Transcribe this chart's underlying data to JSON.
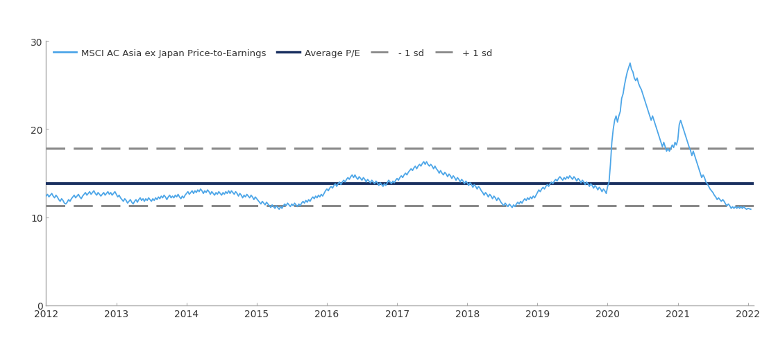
{
  "average_pe": 13.8,
  "plus_1sd": 17.8,
  "minus_1sd": 11.3,
  "line_color": "#4da6e8",
  "average_color": "#1a3060",
  "sd_color": "#888888",
  "xlim_start": 2012.0,
  "xlim_end": 2022.08,
  "ylim": [
    0,
    30
  ],
  "yticks": [
    0,
    10,
    20,
    30
  ],
  "legend_labels": [
    "MSCI AC Asia ex Japan Price-to-Earnings",
    "Average P/E",
    "- 1 sd",
    "+ 1 sd"
  ],
  "pe_data": [
    [
      2012.0,
      12.4
    ],
    [
      2012.02,
      12.6
    ],
    [
      2012.04,
      12.3
    ],
    [
      2012.06,
      12.5
    ],
    [
      2012.08,
      12.7
    ],
    [
      2012.1,
      12.4
    ],
    [
      2012.12,
      12.2
    ],
    [
      2012.14,
      12.5
    ],
    [
      2012.16,
      12.3
    ],
    [
      2012.18,
      12.0
    ],
    [
      2012.2,
      11.8
    ],
    [
      2012.22,
      12.1
    ],
    [
      2012.24,
      11.9
    ],
    [
      2012.26,
      11.6
    ],
    [
      2012.28,
      11.5
    ],
    [
      2012.3,
      11.7
    ],
    [
      2012.32,
      12.0
    ],
    [
      2012.34,
      11.8
    ],
    [
      2012.36,
      12.1
    ],
    [
      2012.38,
      12.3
    ],
    [
      2012.4,
      12.5
    ],
    [
      2012.42,
      12.2
    ],
    [
      2012.44,
      12.4
    ],
    [
      2012.46,
      12.6
    ],
    [
      2012.48,
      12.3
    ],
    [
      2012.5,
      12.1
    ],
    [
      2012.52,
      12.4
    ],
    [
      2012.54,
      12.6
    ],
    [
      2012.56,
      12.8
    ],
    [
      2012.58,
      12.5
    ],
    [
      2012.6,
      12.7
    ],
    [
      2012.62,
      12.9
    ],
    [
      2012.64,
      12.6
    ],
    [
      2012.66,
      12.8
    ],
    [
      2012.68,
      13.0
    ],
    [
      2012.7,
      12.7
    ],
    [
      2012.72,
      12.5
    ],
    [
      2012.74,
      12.8
    ],
    [
      2012.76,
      12.6
    ],
    [
      2012.78,
      12.4
    ],
    [
      2012.8,
      12.6
    ],
    [
      2012.82,
      12.8
    ],
    [
      2012.84,
      12.5
    ],
    [
      2012.86,
      12.7
    ],
    [
      2012.88,
      12.9
    ],
    [
      2012.9,
      12.6
    ],
    [
      2012.92,
      12.8
    ],
    [
      2012.94,
      12.5
    ],
    [
      2012.96,
      12.7
    ],
    [
      2012.98,
      12.9
    ],
    [
      2013.0,
      12.6
    ],
    [
      2013.02,
      12.3
    ],
    [
      2013.04,
      12.5
    ],
    [
      2013.06,
      12.2
    ],
    [
      2013.08,
      12.0
    ],
    [
      2013.1,
      11.8
    ],
    [
      2013.12,
      12.1
    ],
    [
      2013.14,
      11.9
    ],
    [
      2013.16,
      11.6
    ],
    [
      2013.18,
      11.8
    ],
    [
      2013.2,
      12.0
    ],
    [
      2013.22,
      11.7
    ],
    [
      2013.24,
      11.5
    ],
    [
      2013.26,
      11.8
    ],
    [
      2013.28,
      12.0
    ],
    [
      2013.3,
      11.7
    ],
    [
      2013.32,
      12.0
    ],
    [
      2013.34,
      12.2
    ],
    [
      2013.36,
      11.9
    ],
    [
      2013.38,
      12.1
    ],
    [
      2013.4,
      11.8
    ],
    [
      2013.42,
      12.1
    ],
    [
      2013.44,
      11.9
    ],
    [
      2013.46,
      12.2
    ],
    [
      2013.48,
      12.0
    ],
    [
      2013.5,
      11.8
    ],
    [
      2013.52,
      12.1
    ],
    [
      2013.54,
      11.9
    ],
    [
      2013.56,
      12.2
    ],
    [
      2013.58,
      12.0
    ],
    [
      2013.6,
      12.3
    ],
    [
      2013.62,
      12.1
    ],
    [
      2013.64,
      12.4
    ],
    [
      2013.66,
      12.2
    ],
    [
      2013.68,
      12.5
    ],
    [
      2013.7,
      12.3
    ],
    [
      2013.72,
      12.0
    ],
    [
      2013.74,
      12.3
    ],
    [
      2013.76,
      12.5
    ],
    [
      2013.78,
      12.2
    ],
    [
      2013.8,
      12.4
    ],
    [
      2013.82,
      12.2
    ],
    [
      2013.84,
      12.5
    ],
    [
      2013.86,
      12.3
    ],
    [
      2013.88,
      12.6
    ],
    [
      2013.9,
      12.3
    ],
    [
      2013.92,
      12.1
    ],
    [
      2013.94,
      12.4
    ],
    [
      2013.96,
      12.2
    ],
    [
      2013.98,
      12.5
    ],
    [
      2014.0,
      12.7
    ],
    [
      2014.02,
      12.9
    ],
    [
      2014.04,
      12.6
    ],
    [
      2014.06,
      12.8
    ],
    [
      2014.08,
      13.0
    ],
    [
      2014.1,
      12.7
    ],
    [
      2014.12,
      13.0
    ],
    [
      2014.14,
      12.8
    ],
    [
      2014.16,
      13.1
    ],
    [
      2014.18,
      12.9
    ],
    [
      2014.2,
      13.2
    ],
    [
      2014.22,
      13.0
    ],
    [
      2014.24,
      12.7
    ],
    [
      2014.26,
      13.0
    ],
    [
      2014.28,
      12.8
    ],
    [
      2014.3,
      13.1
    ],
    [
      2014.32,
      12.9
    ],
    [
      2014.34,
      12.6
    ],
    [
      2014.36,
      12.9
    ],
    [
      2014.38,
      12.7
    ],
    [
      2014.4,
      12.5
    ],
    [
      2014.42,
      12.8
    ],
    [
      2014.44,
      12.6
    ],
    [
      2014.46,
      12.9
    ],
    [
      2014.48,
      12.7
    ],
    [
      2014.5,
      12.5
    ],
    [
      2014.52,
      12.8
    ],
    [
      2014.54,
      12.6
    ],
    [
      2014.56,
      12.9
    ],
    [
      2014.58,
      12.7
    ],
    [
      2014.6,
      13.0
    ],
    [
      2014.62,
      12.7
    ],
    [
      2014.64,
      13.0
    ],
    [
      2014.66,
      12.8
    ],
    [
      2014.68,
      12.6
    ],
    [
      2014.7,
      12.9
    ],
    [
      2014.72,
      12.7
    ],
    [
      2014.74,
      12.4
    ],
    [
      2014.76,
      12.7
    ],
    [
      2014.78,
      12.5
    ],
    [
      2014.8,
      12.2
    ],
    [
      2014.82,
      12.5
    ],
    [
      2014.84,
      12.3
    ],
    [
      2014.86,
      12.6
    ],
    [
      2014.88,
      12.4
    ],
    [
      2014.9,
      12.2
    ],
    [
      2014.92,
      12.5
    ],
    [
      2014.94,
      12.3
    ],
    [
      2014.96,
      12.0
    ],
    [
      2014.98,
      12.3
    ],
    [
      2015.0,
      12.1
    ],
    [
      2015.02,
      11.9
    ],
    [
      2015.04,
      11.7
    ],
    [
      2015.06,
      11.5
    ],
    [
      2015.08,
      11.8
    ],
    [
      2015.1,
      11.6
    ],
    [
      2015.12,
      11.4
    ],
    [
      2015.14,
      11.7
    ],
    [
      2015.16,
      11.5
    ],
    [
      2015.18,
      11.3
    ],
    [
      2015.2,
      11.1
    ],
    [
      2015.22,
      11.4
    ],
    [
      2015.24,
      11.2
    ],
    [
      2015.26,
      11.0
    ],
    [
      2015.28,
      11.3
    ],
    [
      2015.3,
      11.1
    ],
    [
      2015.32,
      10.9
    ],
    [
      2015.34,
      11.2
    ],
    [
      2015.36,
      11.0
    ],
    [
      2015.38,
      11.3
    ],
    [
      2015.4,
      11.5
    ],
    [
      2015.42,
      11.3
    ],
    [
      2015.44,
      11.6
    ],
    [
      2015.46,
      11.4
    ],
    [
      2015.48,
      11.2
    ],
    [
      2015.5,
      11.5
    ],
    [
      2015.52,
      11.3
    ],
    [
      2015.54,
      11.6
    ],
    [
      2015.56,
      11.4
    ],
    [
      2015.58,
      11.2
    ],
    [
      2015.6,
      11.5
    ],
    [
      2015.62,
      11.3
    ],
    [
      2015.64,
      11.6
    ],
    [
      2015.66,
      11.8
    ],
    [
      2015.68,
      11.6
    ],
    [
      2015.7,
      11.9
    ],
    [
      2015.72,
      11.7
    ],
    [
      2015.74,
      12.0
    ],
    [
      2015.76,
      11.8
    ],
    [
      2015.78,
      12.1
    ],
    [
      2015.8,
      12.3
    ],
    [
      2015.82,
      12.1
    ],
    [
      2015.84,
      12.4
    ],
    [
      2015.86,
      12.2
    ],
    [
      2015.88,
      12.5
    ],
    [
      2015.9,
      12.3
    ],
    [
      2015.92,
      12.6
    ],
    [
      2015.94,
      12.4
    ],
    [
      2015.96,
      12.7
    ],
    [
      2015.98,
      13.0
    ],
    [
      2016.0,
      13.2
    ],
    [
      2016.02,
      13.0
    ],
    [
      2016.04,
      13.3
    ],
    [
      2016.06,
      13.5
    ],
    [
      2016.08,
      13.3
    ],
    [
      2016.1,
      13.6
    ],
    [
      2016.12,
      13.8
    ],
    [
      2016.14,
      13.5
    ],
    [
      2016.16,
      13.8
    ],
    [
      2016.18,
      14.0
    ],
    [
      2016.2,
      13.7
    ],
    [
      2016.22,
      14.0
    ],
    [
      2016.24,
      14.2
    ],
    [
      2016.26,
      14.0
    ],
    [
      2016.28,
      14.3
    ],
    [
      2016.3,
      14.5
    ],
    [
      2016.32,
      14.3
    ],
    [
      2016.34,
      14.6
    ],
    [
      2016.36,
      14.8
    ],
    [
      2016.38,
      14.5
    ],
    [
      2016.4,
      14.8
    ],
    [
      2016.42,
      14.5
    ],
    [
      2016.44,
      14.3
    ],
    [
      2016.46,
      14.6
    ],
    [
      2016.48,
      14.4
    ],
    [
      2016.5,
      14.2
    ],
    [
      2016.52,
      14.5
    ],
    [
      2016.54,
      14.3
    ],
    [
      2016.56,
      14.0
    ],
    [
      2016.58,
      14.3
    ],
    [
      2016.6,
      14.1
    ],
    [
      2016.62,
      13.9
    ],
    [
      2016.64,
      14.2
    ],
    [
      2016.66,
      14.0
    ],
    [
      2016.68,
      13.8
    ],
    [
      2016.7,
      14.1
    ],
    [
      2016.72,
      13.9
    ],
    [
      2016.74,
      13.6
    ],
    [
      2016.76,
      13.9
    ],
    [
      2016.78,
      13.7
    ],
    [
      2016.8,
      13.5
    ],
    [
      2016.82,
      13.8
    ],
    [
      2016.84,
      13.6
    ],
    [
      2016.86,
      13.9
    ],
    [
      2016.88,
      14.2
    ],
    [
      2016.9,
      14.0
    ],
    [
      2016.92,
      13.8
    ],
    [
      2016.94,
      14.1
    ],
    [
      2016.96,
      13.9
    ],
    [
      2016.98,
      14.2
    ],
    [
      2017.0,
      14.4
    ],
    [
      2017.02,
      14.2
    ],
    [
      2017.04,
      14.5
    ],
    [
      2017.06,
      14.7
    ],
    [
      2017.08,
      14.5
    ],
    [
      2017.1,
      14.8
    ],
    [
      2017.12,
      15.0
    ],
    [
      2017.14,
      14.8
    ],
    [
      2017.16,
      15.1
    ],
    [
      2017.18,
      15.3
    ],
    [
      2017.2,
      15.5
    ],
    [
      2017.22,
      15.3
    ],
    [
      2017.24,
      15.6
    ],
    [
      2017.26,
      15.8
    ],
    [
      2017.28,
      15.5
    ],
    [
      2017.3,
      15.8
    ],
    [
      2017.32,
      16.0
    ],
    [
      2017.34,
      15.8
    ],
    [
      2017.36,
      16.1
    ],
    [
      2017.38,
      16.3
    ],
    [
      2017.4,
      16.0
    ],
    [
      2017.42,
      16.3
    ],
    [
      2017.44,
      16.0
    ],
    [
      2017.46,
      15.8
    ],
    [
      2017.48,
      16.0
    ],
    [
      2017.5,
      15.8
    ],
    [
      2017.52,
      15.5
    ],
    [
      2017.54,
      15.8
    ],
    [
      2017.56,
      15.5
    ],
    [
      2017.58,
      15.3
    ],
    [
      2017.6,
      15.0
    ],
    [
      2017.62,
      15.3
    ],
    [
      2017.64,
      15.0
    ],
    [
      2017.66,
      14.8
    ],
    [
      2017.68,
      15.1
    ],
    [
      2017.7,
      14.9
    ],
    [
      2017.72,
      14.6
    ],
    [
      2017.74,
      14.9
    ],
    [
      2017.76,
      14.7
    ],
    [
      2017.78,
      14.4
    ],
    [
      2017.8,
      14.7
    ],
    [
      2017.82,
      14.5
    ],
    [
      2017.84,
      14.2
    ],
    [
      2017.86,
      14.5
    ],
    [
      2017.88,
      14.3
    ],
    [
      2017.9,
      14.0
    ],
    [
      2017.92,
      14.3
    ],
    [
      2017.94,
      14.1
    ],
    [
      2017.96,
      13.8
    ],
    [
      2017.98,
      14.1
    ],
    [
      2018.0,
      13.9
    ],
    [
      2018.02,
      13.6
    ],
    [
      2018.04,
      13.9
    ],
    [
      2018.06,
      13.7
    ],
    [
      2018.08,
      13.4
    ],
    [
      2018.1,
      13.7
    ],
    [
      2018.12,
      13.5
    ],
    [
      2018.14,
      13.2
    ],
    [
      2018.16,
      13.5
    ],
    [
      2018.18,
      13.3
    ],
    [
      2018.2,
      13.0
    ],
    [
      2018.22,
      12.8
    ],
    [
      2018.24,
      12.5
    ],
    [
      2018.26,
      12.8
    ],
    [
      2018.28,
      12.6
    ],
    [
      2018.3,
      12.3
    ],
    [
      2018.32,
      12.6
    ],
    [
      2018.34,
      12.4
    ],
    [
      2018.36,
      12.1
    ],
    [
      2018.38,
      12.4
    ],
    [
      2018.4,
      12.2
    ],
    [
      2018.42,
      11.9
    ],
    [
      2018.44,
      12.2
    ],
    [
      2018.46,
      12.0
    ],
    [
      2018.48,
      11.7
    ],
    [
      2018.5,
      11.5
    ],
    [
      2018.52,
      11.3
    ],
    [
      2018.54,
      11.6
    ],
    [
      2018.56,
      11.4
    ],
    [
      2018.58,
      11.2
    ],
    [
      2018.6,
      11.5
    ],
    [
      2018.62,
      11.3
    ],
    [
      2018.64,
      11.1
    ],
    [
      2018.66,
      11.4
    ],
    [
      2018.68,
      11.2
    ],
    [
      2018.7,
      11.5
    ],
    [
      2018.72,
      11.7
    ],
    [
      2018.74,
      11.5
    ],
    [
      2018.76,
      11.8
    ],
    [
      2018.78,
      11.6
    ],
    [
      2018.8,
      11.9
    ],
    [
      2018.82,
      12.1
    ],
    [
      2018.84,
      11.9
    ],
    [
      2018.86,
      12.2
    ],
    [
      2018.88,
      12.0
    ],
    [
      2018.9,
      12.3
    ],
    [
      2018.92,
      12.1
    ],
    [
      2018.94,
      12.4
    ],
    [
      2018.96,
      12.2
    ],
    [
      2018.98,
      12.5
    ],
    [
      2019.0,
      12.8
    ],
    [
      2019.02,
      13.1
    ],
    [
      2019.04,
      12.9
    ],
    [
      2019.06,
      13.2
    ],
    [
      2019.08,
      13.4
    ],
    [
      2019.1,
      13.2
    ],
    [
      2019.12,
      13.5
    ],
    [
      2019.14,
      13.7
    ],
    [
      2019.16,
      13.5
    ],
    [
      2019.18,
      13.8
    ],
    [
      2019.2,
      14.0
    ],
    [
      2019.22,
      13.8
    ],
    [
      2019.24,
      14.1
    ],
    [
      2019.26,
      14.3
    ],
    [
      2019.28,
      14.1
    ],
    [
      2019.3,
      14.4
    ],
    [
      2019.32,
      14.6
    ],
    [
      2019.34,
      14.4
    ],
    [
      2019.36,
      14.2
    ],
    [
      2019.38,
      14.5
    ],
    [
      2019.4,
      14.3
    ],
    [
      2019.42,
      14.6
    ],
    [
      2019.44,
      14.4
    ],
    [
      2019.46,
      14.7
    ],
    [
      2019.48,
      14.5
    ],
    [
      2019.5,
      14.3
    ],
    [
      2019.52,
      14.6
    ],
    [
      2019.54,
      14.4
    ],
    [
      2019.56,
      14.1
    ],
    [
      2019.58,
      14.4
    ],
    [
      2019.6,
      14.2
    ],
    [
      2019.62,
      13.9
    ],
    [
      2019.64,
      14.2
    ],
    [
      2019.66,
      14.0
    ],
    [
      2019.68,
      13.7
    ],
    [
      2019.7,
      14.0
    ],
    [
      2019.72,
      13.8
    ],
    [
      2019.74,
      13.5
    ],
    [
      2019.76,
      13.8
    ],
    [
      2019.78,
      13.6
    ],
    [
      2019.8,
      13.3
    ],
    [
      2019.82,
      13.6
    ],
    [
      2019.84,
      13.4
    ],
    [
      2019.86,
      13.1
    ],
    [
      2019.88,
      13.4
    ],
    [
      2019.9,
      13.2
    ],
    [
      2019.92,
      12.9
    ],
    [
      2019.94,
      13.2
    ],
    [
      2019.96,
      13.0
    ],
    [
      2019.98,
      12.7
    ],
    [
      2020.0,
      13.5
    ],
    [
      2020.02,
      14.0
    ],
    [
      2020.04,
      16.0
    ],
    [
      2020.06,
      18.5
    ],
    [
      2020.08,
      20.0
    ],
    [
      2020.1,
      21.0
    ],
    [
      2020.12,
      21.5
    ],
    [
      2020.14,
      20.8
    ],
    [
      2020.16,
      21.5
    ],
    [
      2020.18,
      22.0
    ],
    [
      2020.2,
      23.5
    ],
    [
      2020.22,
      24.0
    ],
    [
      2020.24,
      25.0
    ],
    [
      2020.26,
      25.8
    ],
    [
      2020.28,
      26.5
    ],
    [
      2020.3,
      27.0
    ],
    [
      2020.32,
      27.5
    ],
    [
      2020.34,
      26.8
    ],
    [
      2020.36,
      26.5
    ],
    [
      2020.38,
      25.8
    ],
    [
      2020.4,
      25.5
    ],
    [
      2020.42,
      25.8
    ],
    [
      2020.44,
      25.2
    ],
    [
      2020.46,
      24.8
    ],
    [
      2020.48,
      24.5
    ],
    [
      2020.5,
      24.0
    ],
    [
      2020.52,
      23.5
    ],
    [
      2020.54,
      23.0
    ],
    [
      2020.56,
      22.5
    ],
    [
      2020.58,
      22.0
    ],
    [
      2020.6,
      21.5
    ],
    [
      2020.62,
      21.0
    ],
    [
      2020.64,
      21.5
    ],
    [
      2020.66,
      21.0
    ],
    [
      2020.68,
      20.5
    ],
    [
      2020.7,
      20.0
    ],
    [
      2020.72,
      19.5
    ],
    [
      2020.74,
      19.0
    ],
    [
      2020.76,
      18.5
    ],
    [
      2020.78,
      18.0
    ],
    [
      2020.8,
      18.5
    ],
    [
      2020.82,
      18.0
    ],
    [
      2020.84,
      17.5
    ],
    [
      2020.86,
      17.8
    ],
    [
      2020.88,
      17.5
    ],
    [
      2020.9,
      17.8
    ],
    [
      2020.92,
      18.2
    ],
    [
      2020.94,
      17.9
    ],
    [
      2020.96,
      18.5
    ],
    [
      2020.98,
      18.2
    ],
    [
      2021.0,
      18.8
    ],
    [
      2021.02,
      20.5
    ],
    [
      2021.04,
      21.0
    ],
    [
      2021.06,
      20.5
    ],
    [
      2021.08,
      20.0
    ],
    [
      2021.1,
      19.5
    ],
    [
      2021.12,
      19.0
    ],
    [
      2021.14,
      18.5
    ],
    [
      2021.16,
      18.0
    ],
    [
      2021.18,
      17.6
    ],
    [
      2021.2,
      17.0
    ],
    [
      2021.22,
      17.5
    ],
    [
      2021.24,
      17.0
    ],
    [
      2021.26,
      16.5
    ],
    [
      2021.28,
      16.0
    ],
    [
      2021.3,
      15.5
    ],
    [
      2021.32,
      15.0
    ],
    [
      2021.34,
      14.5
    ],
    [
      2021.36,
      14.8
    ],
    [
      2021.38,
      14.5
    ],
    [
      2021.4,
      14.0
    ],
    [
      2021.42,
      13.8
    ],
    [
      2021.44,
      13.5
    ],
    [
      2021.46,
      13.2
    ],
    [
      2021.48,
      13.0
    ],
    [
      2021.5,
      12.8
    ],
    [
      2021.52,
      12.5
    ],
    [
      2021.54,
      12.3
    ],
    [
      2021.56,
      12.0
    ],
    [
      2021.58,
      12.2
    ],
    [
      2021.6,
      12.0
    ],
    [
      2021.62,
      11.8
    ],
    [
      2021.64,
      12.0
    ],
    [
      2021.66,
      11.8
    ],
    [
      2021.68,
      11.5
    ],
    [
      2021.7,
      11.3
    ],
    [
      2021.72,
      11.5
    ],
    [
      2021.74,
      11.3
    ],
    [
      2021.76,
      11.0
    ],
    [
      2021.78,
      11.2
    ],
    [
      2021.8,
      11.0
    ],
    [
      2021.82,
      11.2
    ],
    [
      2021.84,
      11.0
    ],
    [
      2021.86,
      11.2
    ],
    [
      2021.88,
      11.0
    ],
    [
      2021.9,
      11.2
    ],
    [
      2021.92,
      11.0
    ],
    [
      2021.94,
      11.2
    ],
    [
      2021.96,
      11.0
    ],
    [
      2021.98,
      10.9
    ],
    [
      2022.0,
      11.0
    ],
    [
      2022.04,
      10.9
    ]
  ]
}
